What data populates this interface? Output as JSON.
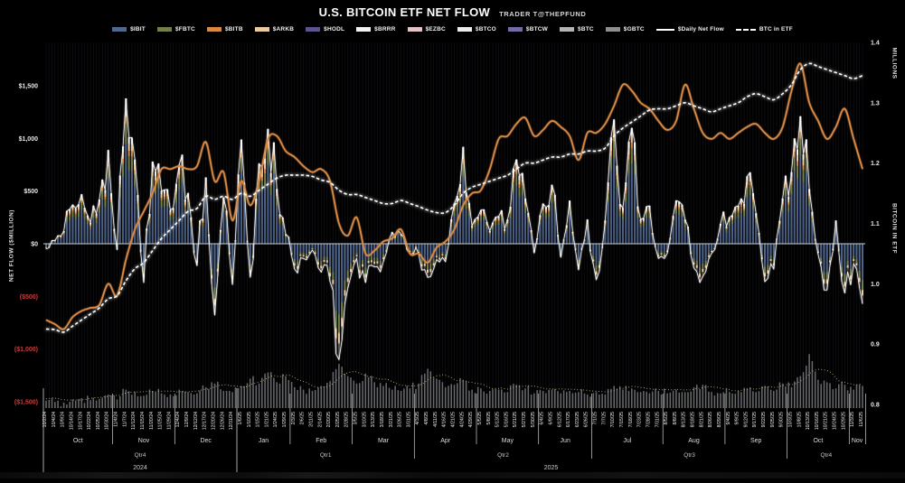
{
  "header": {
    "title": "U.S. BITCOIN ETF NET FLOW",
    "subtitle": "TRADER T@THEPFUND"
  },
  "legend": {
    "items": [
      {
        "label": "$IBIT",
        "color": "#51688e",
        "swatch": "bar"
      },
      {
        "label": "$FBTC",
        "color": "#74804a",
        "swatch": "bar"
      },
      {
        "label": "$BITB",
        "color": "#d98a41",
        "swatch": "bar"
      },
      {
        "label": "$ARKB",
        "color": "#eec9a0",
        "swatch": "bar"
      },
      {
        "label": "$HODL",
        "color": "#5d5390",
        "swatch": "bar"
      },
      {
        "label": "$BRRR",
        "color": "#f2f2f2",
        "swatch": "bar"
      },
      {
        "label": "$EZBC",
        "color": "#e3c3c3",
        "swatch": "bar"
      },
      {
        "label": "$BTCO",
        "color": "#ededed",
        "swatch": "bar"
      },
      {
        "label": "$BTCW",
        "color": "#776ba6",
        "swatch": "bar"
      },
      {
        "label": "$BTC",
        "color": "#b5b5b5",
        "swatch": "bar"
      },
      {
        "label": "$GBTC",
        "color": "#8f8f8f",
        "swatch": "bar"
      },
      {
        "label": "$Daily Net Flow",
        "color": "#ffffff",
        "swatch": "line"
      },
      {
        "label": "BTC in ETF",
        "color": "#ffffff",
        "swatch": "dashed"
      }
    ]
  },
  "axes": {
    "left": {
      "title": "NET FLOW ($MILLION)",
      "ticks": [
        {
          "label": "$1,500",
          "value": 1500,
          "negative": false
        },
        {
          "label": "$1,000",
          "value": 1000,
          "negative": false
        },
        {
          "label": "$500",
          "value": 500,
          "negative": false
        },
        {
          "label": "$0",
          "value": 0,
          "negative": false
        },
        {
          "label": "($500)",
          "value": -500,
          "negative": true
        },
        {
          "label": "($1,000)",
          "value": -1000,
          "negative": true
        },
        {
          "label": "($1,500)",
          "value": -1500,
          "negative": true
        }
      ]
    },
    "right": {
      "unit_label": "MILLIONS",
      "title": "BITCOIN IN ETF",
      "ticks": [
        {
          "label": "1.4",
          "value": 1.4
        },
        {
          "label": "1.3",
          "value": 1.3
        },
        {
          "label": "1.2",
          "value": 1.2
        },
        {
          "label": "1.1",
          "value": 1.1
        },
        {
          "label": "1.0",
          "value": 1.0
        },
        {
          "label": "0.9",
          "value": 0.9
        },
        {
          "label": "0.8",
          "value": 0.8
        }
      ]
    },
    "bottom": {
      "months": [
        {
          "label": "Oct",
          "count": 8
        },
        {
          "label": "Nov",
          "count": 7
        },
        {
          "label": "Dec",
          "count": 7
        },
        {
          "label": "Jan",
          "count": 6
        },
        {
          "label": "Feb",
          "count": 7
        },
        {
          "label": "Mar",
          "count": 7
        },
        {
          "label": "Apr",
          "count": 7
        },
        {
          "label": "May",
          "count": 7
        },
        {
          "label": "Jun",
          "count": 6
        },
        {
          "label": "Jul",
          "count": 8
        },
        {
          "label": "Aug",
          "count": 7
        },
        {
          "label": "Sep",
          "count": 7
        },
        {
          "label": "Oct",
          "count": 7
        },
        {
          "label": "Nov",
          "count": 2
        }
      ],
      "quarters": [
        {
          "label": "Qtr4",
          "count": 22
        },
        {
          "label": "Qtr1",
          "count": 20
        },
        {
          "label": "Qtr2",
          "count": 20
        },
        {
          "label": "Qtr3",
          "count": 22
        },
        {
          "label": "Qtr4",
          "count": 9
        }
      ],
      "years": [
        {
          "label": "2024",
          "count": 22
        },
        {
          "label": "2025",
          "count": 71
        }
      ]
    }
  },
  "chart_data": {
    "type": "bar",
    "title": "U.S. BITCOIN ETF NET FLOW",
    "xlabel": "",
    "ylabel_left": "NET FLOW ($MILLION)",
    "ylabel_right": "BITCOIN IN ETF (MILLIONS)",
    "ylim_left": [
      -1500,
      1500
    ],
    "ylim_right": [
      0.8,
      1.4
    ],
    "background": "#000000",
    "legend_position": "top",
    "grid": "faint-vertical-daily",
    "x": [
      "10/2/24",
      "10/4/24",
      "10/9/24",
      "10/14/24",
      "10/17/24",
      "10/22/24",
      "10/25/24",
      "10/30/24",
      "11/4/24",
      "11/7/24",
      "11/12/24",
      "11/15/24",
      "11/20/24",
      "11/25/24",
      "11/29/24",
      "12/4/24",
      "12/9/24",
      "12/12/24",
      "12/17/24",
      "12/20/24",
      "12/26/24",
      "12/31/24",
      "1/6/25",
      "1/10/25",
      "1/15/25",
      "1/21/25",
      "1/24/25",
      "1/29/25",
      "2/3/25",
      "2/6/25",
      "2/11/25",
      "2/14/25",
      "2/20/25",
      "2/25/25",
      "2/28/25",
      "3/5/25",
      "3/10/25",
      "3/13/25",
      "3/18/25",
      "3/21/25",
      "3/26/25",
      "3/31/25",
      "4/3/25",
      "4/8/25",
      "4/11/25",
      "4/16/25",
      "4/21/25",
      "4/24/25",
      "4/29/25",
      "5/5/25",
      "5/8/25",
      "5/13/25",
      "5/16/25",
      "5/21/25",
      "5/27/25",
      "5/30/25",
      "6/4/25",
      "6/9/25",
      "6/12/25",
      "6/17/25",
      "6/23/25",
      "6/26/25",
      "7/1/25",
      "7/7/25",
      "7/10/25",
      "7/15/25",
      "7/18/25",
      "7/23/25",
      "7/28/25",
      "7/31/25",
      "8/5/25",
      "8/8/25",
      "8/13/25",
      "8/18/25",
      "8/21/25",
      "8/26/25",
      "8/29/25",
      "9/4/25",
      "9/9/25",
      "9/12/25",
      "9/17/25",
      "9/22/25",
      "9/25/25",
      "9/30/25",
      "10/3/25",
      "10/8/25",
      "10/13/25",
      "10/16/25",
      "10/21/25",
      "10/24/25",
      "10/29/25",
      "11/3/25",
      "11/6/25"
    ],
    "series": [
      {
        "name": "Daily Net Flow",
        "type": "bar",
        "axis": "left",
        "unit": "$ million",
        "note": "stacked by ETF (IBIT blue dominant); white glow line traces the same values",
        "values": [
          -50,
          30,
          120,
          370,
          470,
          200,
          420,
          890,
          -60,
          1380,
          800,
          -370,
          780,
          500,
          320,
          750,
          480,
          -210,
          630,
          -680,
          440,
          -390,
          990,
          -320,
          760,
          1090,
          520,
          90,
          -240,
          -140,
          -60,
          -270,
          -360,
          -1100,
          -420,
          -140,
          -370,
          -220,
          -170,
          110,
          90,
          -90,
          -100,
          -320,
          -150,
          -170,
          380,
          920,
          170,
          320,
          120,
          260,
          230,
          800,
          430,
          -90,
          380,
          560,
          -130,
          410,
          -250,
          230,
          -340,
          220,
          1180,
          340,
          1100,
          230,
          360,
          -140,
          -90,
          410,
          230,
          -230,
          -310,
          -90,
          190,
          250,
          360,
          640,
          290,
          -360,
          -240,
          430,
          680,
          1210,
          520,
          -100,
          -440,
          220,
          -470,
          -190,
          -570
        ]
      },
      {
        "name": "BTC in ETF",
        "type": "line",
        "style": "dashed-white-glow",
        "axis": "right",
        "unit": "million BTC",
        "values": [
          0.925,
          0.924,
          0.92,
          0.93,
          0.94,
          0.95,
          0.96,
          0.975,
          0.98,
          1.005,
          1.025,
          1.035,
          1.055,
          1.075,
          1.09,
          1.105,
          1.12,
          1.125,
          1.145,
          1.14,
          1.145,
          1.14,
          1.15,
          1.145,
          1.155,
          1.165,
          1.175,
          1.18,
          1.18,
          1.18,
          1.178,
          1.172,
          1.168,
          1.155,
          1.148,
          1.148,
          1.143,
          1.138,
          1.133,
          1.133,
          1.138,
          1.133,
          1.128,
          1.122,
          1.118,
          1.118,
          1.13,
          1.15,
          1.16,
          1.165,
          1.17,
          1.175,
          1.18,
          1.19,
          1.2,
          1.2,
          1.205,
          1.21,
          1.21,
          1.215,
          1.215,
          1.22,
          1.22,
          1.225,
          1.245,
          1.258,
          1.268,
          1.278,
          1.288,
          1.29,
          1.29,
          1.295,
          1.3,
          1.295,
          1.29,
          1.285,
          1.29,
          1.295,
          1.3,
          1.31,
          1.315,
          1.31,
          1.305,
          1.315,
          1.33,
          1.355,
          1.365,
          1.36,
          1.355,
          1.35,
          1.345,
          1.34,
          1.345
        ]
      },
      {
        "name": "BTC price trend (unlabeled orange line)",
        "type": "line",
        "style": "solid-orange",
        "axis": "right-equivalent",
        "unit": "right-axis units",
        "values": [
          0.94,
          0.933,
          0.925,
          0.945,
          0.955,
          0.96,
          0.965,
          1.0,
          0.98,
          1.04,
          1.09,
          1.12,
          1.15,
          1.19,
          1.19,
          1.195,
          1.19,
          1.195,
          1.235,
          1.17,
          1.185,
          1.105,
          1.17,
          1.13,
          1.17,
          1.24,
          1.245,
          1.22,
          1.21,
          1.195,
          1.185,
          1.19,
          1.17,
          1.1,
          1.08,
          1.11,
          1.05,
          1.055,
          1.07,
          1.075,
          1.09,
          1.05,
          1.05,
          1.035,
          1.06,
          1.07,
          1.09,
          1.13,
          1.15,
          1.155,
          1.19,
          1.24,
          1.245,
          1.265,
          1.275,
          1.245,
          1.255,
          1.27,
          1.26,
          1.245,
          1.205,
          1.25,
          1.25,
          1.265,
          1.295,
          1.33,
          1.32,
          1.3,
          1.29,
          1.27,
          1.255,
          1.27,
          1.33,
          1.29,
          1.25,
          1.24,
          1.25,
          1.24,
          1.25,
          1.26,
          1.265,
          1.25,
          1.24,
          1.26,
          1.32,
          1.365,
          1.3,
          1.27,
          1.24,
          1.26,
          1.29,
          1.24,
          1.19
        ]
      },
      {
        "name": "Bottom volume bars (unlabeled)",
        "type": "bar",
        "axis": "bottom-strip",
        "unit": "relative 0-100",
        "values": [
          12,
          10,
          9,
          14,
          16,
          13,
          15,
          22,
          14,
          30,
          26,
          20,
          28,
          24,
          22,
          30,
          26,
          24,
          34,
          40,
          28,
          26,
          36,
          48,
          40,
          58,
          42,
          52,
          34,
          30,
          28,
          36,
          44,
          72,
          52,
          40,
          56,
          42,
          36,
          30,
          28,
          32,
          40,
          64,
          48,
          34,
          38,
          46,
          30,
          32,
          28,
          30,
          26,
          38,
          32,
          24,
          28,
          30,
          24,
          28,
          26,
          22,
          26,
          22,
          36,
          30,
          32,
          26,
          24,
          28,
          24,
          30,
          26,
          34,
          38,
          26,
          24,
          26,
          28,
          32,
          26,
          36,
          28,
          40,
          34,
          52,
          88,
          46,
          42,
          32,
          38,
          30,
          36
        ]
      }
    ],
    "stack_colors": {
      "IBIT": "#51688e",
      "FBTC": "#74804a",
      "BITB": "#d98a41",
      "ARKB": "#eec9a0",
      "HODL": "#5d5390",
      "BRRR": "#f2f2f2",
      "EZBC": "#e3c3c3",
      "BTCO": "#ededed",
      "BTCW": "#776ba6",
      "BTC": "#b5b5b5",
      "GBTC": "#8f8f8f"
    }
  },
  "colors": {
    "background": "#000000",
    "positive_tick": "#e8e8e8",
    "negative_tick": "#c14040",
    "net_flow_line": "#ffffff",
    "btc_in_etf_line": "#ffffff",
    "orange_line": "#d98a44",
    "volume_bar": "#b0b5ba",
    "volume_avg_line": "#bfc882",
    "zero_line": "#c9ced3",
    "separator": "#e8e8e8"
  }
}
